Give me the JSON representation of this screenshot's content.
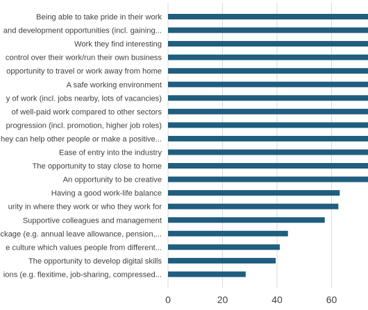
{
  "chart_data": {
    "type": "bar",
    "orientation": "horizontal",
    "title": "",
    "xlabel": "",
    "ylabel": "",
    "xlim": [
      0,
      75
    ],
    "x_ticks": [
      0,
      20,
      40,
      60
    ],
    "grid": true,
    "bar_color": "#1f5e7e",
    "grid_color": "#d9d9d9",
    "text_color": "#404040",
    "categories": [
      "Being able to take pride in their work",
      "and development opportunities (incl. gaining...",
      "Work they find interesting",
      "control over their work/run their own business",
      "opportunity to travel or work away from home",
      "A safe working environment",
      "y of work (incl. jobs nearby, lots of vacancies)",
      "of well-paid work compared to other sectors",
      "progression (incl. promotion, higher job roles)",
      "hey can help other people or make a positive...",
      "Ease of entry into the industry",
      "The opportunity to stay close to home",
      "An opportunity to be creative",
      "Having a good work-life balance",
      "urity in where they work or who they work for",
      "Supportive colleagues and management",
      "ckage (e.g. annual leave allowance, pension,...",
      "e culture which values people from different...",
      "The opportunity to develop digital skills",
      "ions (e.g. flexitime, job-sharing, compressed..."
    ],
    "values": [
      75,
      75,
      75,
      75,
      75,
      75,
      75,
      75,
      75,
      75,
      75,
      74,
      74.5,
      63,
      62.5,
      57.5,
      44,
      41,
      39.5,
      28.5
    ]
  }
}
